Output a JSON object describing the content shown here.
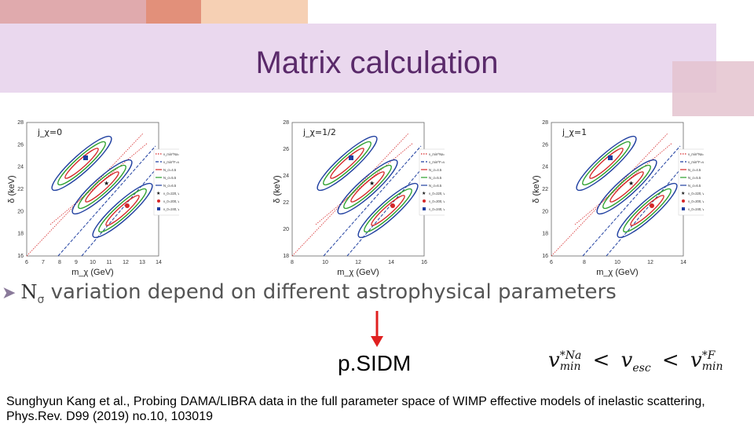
{
  "slide": {
    "title": "Matrix calculation",
    "bullet_symbol": "N",
    "bullet_subscript": "σ",
    "bullet_text": "variation depend on different astrophysical parameters",
    "method_label": "p.SIDM",
    "formula": {
      "v1_base": "v",
      "v1_sup": "*Na",
      "v1_sub": "min",
      "lt1": "<",
      "vesc_base": "v",
      "vesc_sub": "esc",
      "lt2": "<",
      "v2_base": "v",
      "v2_sup": "*F",
      "v2_sub": "min"
    },
    "citation": "Sunghyun Kang et al., Probing DAMA/LIBRA data in the full parameter space of WIMP effective models of inelastic scattering, Phys.Rev. D99 (2019) no.10, 103019"
  },
  "chart_data": [
    {
      "type": "contour",
      "panel_label": "j_χ=0",
      "xlabel": "m_χ (GeV)",
      "ylabel": "δ (keV)",
      "xticks": [
        "6",
        "7",
        "8",
        "9",
        "10",
        "11",
        "12",
        "13",
        "14"
      ],
      "yticks": [
        "16",
        "18",
        "20",
        "22",
        "24",
        "26",
        "28"
      ],
      "legend": [
        "v_min^Na=v_esc",
        "v_min^F=v_esc",
        "N_σ=4.5",
        "N_σ=5.5",
        "N_σ=6.5",
        "v_0=220, v_esc=550",
        "v_0=200, v_esc=520",
        "v_0=240, v_esc=580"
      ]
    },
    {
      "type": "contour",
      "panel_label": "j_χ=1/2",
      "xlabel": "m_χ (GeV)",
      "ylabel": "δ (keV)",
      "xticks": [
        "8",
        "10",
        "12",
        "14",
        "16"
      ],
      "yticks": [
        "18",
        "20",
        "22",
        "24",
        "26",
        "28"
      ],
      "legend": [
        "v_min^Na=v_esc",
        "v_min^F=v_esc",
        "N_σ=4.5",
        "N_σ=5.5",
        "N_σ=6.5",
        "v_0=220, v_esc=550",
        "v_0=200, v_esc=520",
        "v_0=240, v_esc=580"
      ]
    },
    {
      "type": "contour",
      "panel_label": "j_χ=1",
      "xlabel": "m_χ (GeV)",
      "ylabel": "δ (keV)",
      "xticks": [
        "6",
        "8",
        "10",
        "12",
        "14"
      ],
      "yticks": [
        "16",
        "18",
        "20",
        "22",
        "24",
        "26",
        "28"
      ],
      "legend": [
        "v_min^Na=v_esc",
        "v_min^F=v_esc",
        "N_σ=4.5",
        "N_σ=5.5",
        "N_σ=6.5",
        "v_0=220, v_esc=550",
        "v_0=200, v_esc=520",
        "v_0=240, v_esc=580"
      ]
    }
  ],
  "colors": {
    "title": "#5a2a6a",
    "band_lavender": "#ead8ee",
    "deco_pink": "#e0aaad",
    "deco_salmon": "#e2907a",
    "deco_peach": "#f6d0b4",
    "deco_square": "#e4c3cf",
    "contour_red": "#d62728",
    "contour_green": "#2ca02c",
    "contour_blue": "#1f3fa0",
    "arrow_red": "#e02020"
  }
}
